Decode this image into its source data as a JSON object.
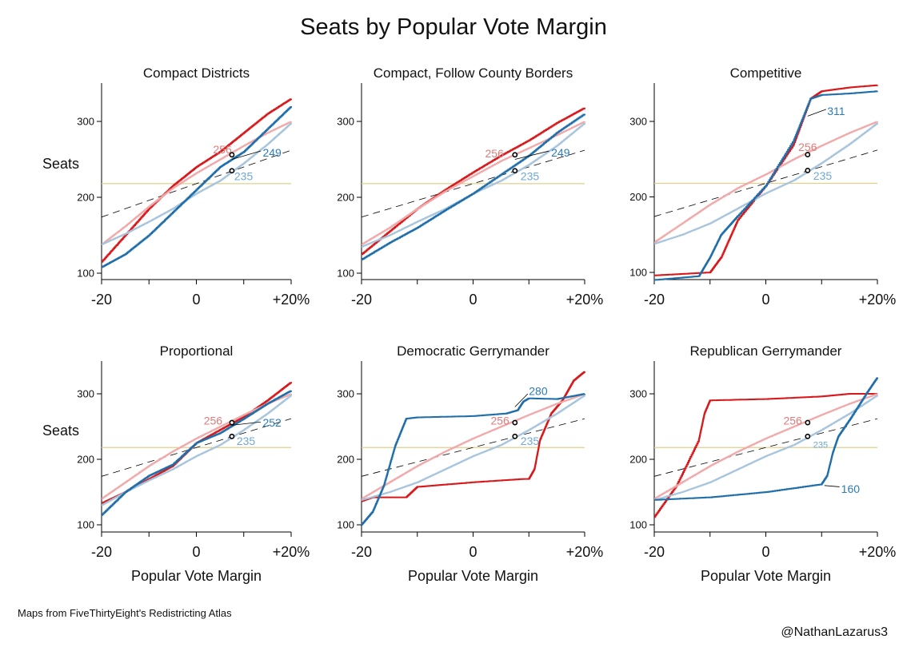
{
  "title": "Seats by Popular Vote Margin",
  "source_note": "Maps from FiveThirtyEight's Redistricting Atlas",
  "credit": "@NathanLazarus3",
  "colors": {
    "dark_red": "#d7191c",
    "light_red": "#f0a8a8",
    "dark_blue": "#1f6ea9",
    "light_blue": "#a6c4dc",
    "majority_line": "#e0cf8a",
    "reference_line": "#000000",
    "label_red": "#e07b7b",
    "label_blue_dark": "#2b7bb9",
    "label_blue_light": "#6fa8d6"
  },
  "chart_data": [
    {
      "type": "line",
      "title": "Compact Districts",
      "ylabel": "Seats",
      "xlabel": "",
      "xlim": [
        -20,
        20
      ],
      "ylim": [
        90,
        348
      ],
      "x_ticks": [
        "-20",
        "0",
        "+20%"
      ],
      "y_ticks": [
        100,
        200,
        300
      ],
      "majority_line": 218,
      "reference_line": {
        "x": [
          -20,
          20
        ],
        "y": [
          174,
          262
        ]
      },
      "series": [
        {
          "role": "dark-red",
          "x": [
            -20,
            -15,
            -10,
            -5,
            0,
            5,
            10,
            15,
            20
          ],
          "y": [
            115,
            150,
            185,
            215,
            240,
            260,
            285,
            310,
            330
          ]
        },
        {
          "role": "light-red",
          "x": [
            -20,
            -15,
            -10,
            -5,
            0,
            5,
            10,
            15,
            20
          ],
          "y": [
            138,
            162,
            188,
            212,
            232,
            250,
            268,
            285,
            300
          ]
        },
        {
          "role": "light-blue",
          "x": [
            -20,
            -15,
            -10,
            -5,
            0,
            5,
            10,
            15,
            20
          ],
          "y": [
            138,
            152,
            168,
            185,
            205,
            222,
            245,
            270,
            298
          ]
        },
        {
          "role": "dark-blue",
          "x": [
            -20,
            -15,
            -10,
            -5,
            0,
            5,
            10,
            15,
            20
          ],
          "y": [
            108,
            125,
            150,
            180,
            210,
            240,
            260,
            290,
            320
          ]
        }
      ],
      "markers": [
        {
          "x": 7.5,
          "y": 256
        },
        {
          "x": 7.5,
          "y": 235
        }
      ],
      "labels": [
        {
          "text": "256",
          "x": 5.5,
          "y": 263,
          "role": "red",
          "anchor": "middle"
        },
        {
          "text": "235",
          "x": 8,
          "y": 228,
          "role": "blue-light",
          "anchor": "start"
        },
        {
          "text": "249",
          "x": 14,
          "y": 259,
          "role": "blue-dark",
          "anchor": "start",
          "leader_from": [
            7.5,
            250
          ],
          "leader_to": [
            13.6,
            261
          ]
        }
      ]
    },
    {
      "type": "line",
      "title": "Compact, Follow County Borders",
      "ylabel": "",
      "xlabel": "",
      "xlim": [
        -20,
        20
      ],
      "ylim": [
        90,
        348
      ],
      "x_ticks": [
        "-20",
        "0",
        "+20%"
      ],
      "y_ticks": [
        100,
        200,
        300
      ],
      "majority_line": 218,
      "reference_line": {
        "x": [
          -20,
          20
        ],
        "y": [
          174,
          262
        ]
      },
      "series": [
        {
          "role": "dark-red",
          "x": [
            -20,
            -15,
            -10,
            -5,
            0,
            5,
            10,
            15,
            20
          ],
          "y": [
            125,
            155,
            185,
            210,
            233,
            255,
            275,
            298,
            318
          ]
        },
        {
          "role": "light-red",
          "x": [
            -20,
            -15,
            -10,
            -5,
            0,
            5,
            10,
            15,
            20
          ],
          "y": [
            138,
            160,
            185,
            208,
            228,
            248,
            265,
            282,
            300
          ]
        },
        {
          "role": "light-blue",
          "x": [
            -20,
            -15,
            -10,
            -5,
            0,
            5,
            10,
            15,
            20
          ],
          "y": [
            135,
            150,
            168,
            185,
            205,
            222,
            243,
            268,
            298
          ]
        },
        {
          "role": "dark-blue",
          "x": [
            -20,
            -15,
            -10,
            -5,
            0,
            5,
            10,
            15,
            20
          ],
          "y": [
            118,
            140,
            160,
            183,
            205,
            230,
            255,
            285,
            310
          ]
        }
      ],
      "markers": [
        {
          "x": 7.5,
          "y": 256
        },
        {
          "x": 7.5,
          "y": 235
        }
      ],
      "labels": [
        {
          "text": "256",
          "x": 5.5,
          "y": 258,
          "role": "red",
          "anchor": "end"
        },
        {
          "text": "235",
          "x": 8.5,
          "y": 228,
          "role": "blue-light",
          "anchor": "start"
        },
        {
          "text": "249",
          "x": 14,
          "y": 259,
          "role": "blue-dark",
          "anchor": "start",
          "leader_from": [
            7.5,
            250
          ],
          "leader_to": [
            13.6,
            261
          ]
        }
      ]
    },
    {
      "type": "line",
      "title": "Competitive",
      "ylabel": "",
      "xlabel": "",
      "xlim": [
        -20,
        20
      ],
      "ylim": [
        90,
        348
      ],
      "x_ticks": [
        "-20",
        "0",
        "+20%"
      ],
      "y_ticks": [
        100,
        200,
        300
      ],
      "majority_line": 218,
      "reference_line": {
        "x": [
          -20,
          20
        ],
        "y": [
          174,
          262
        ]
      },
      "series": [
        {
          "role": "dark-red",
          "x": [
            -20,
            -10,
            -8,
            -5,
            0,
            5,
            8,
            10,
            15,
            20
          ],
          "y": [
            96,
            100,
            120,
            170,
            215,
            270,
            330,
            340,
            345,
            348
          ]
        },
        {
          "role": "light-red",
          "x": [
            -20,
            -15,
            -10,
            -5,
            0,
            5,
            10,
            15,
            20
          ],
          "y": [
            140,
            165,
            190,
            212,
            230,
            250,
            268,
            285,
            300
          ]
        },
        {
          "role": "light-blue",
          "x": [
            -20,
            -15,
            -10,
            -5,
            0,
            5,
            10,
            15,
            20
          ],
          "y": [
            138,
            150,
            165,
            185,
            205,
            222,
            245,
            270,
            298
          ]
        },
        {
          "role": "dark-blue",
          "x": [
            -20,
            -12,
            -10,
            -8,
            -5,
            0,
            5,
            8,
            10,
            15,
            20
          ],
          "y": [
            90,
            95,
            120,
            150,
            175,
            215,
            275,
            330,
            335,
            337,
            340
          ]
        }
      ],
      "markers": [
        {
          "x": 7.5,
          "y": 256
        },
        {
          "x": 7.5,
          "y": 235
        }
      ],
      "labels": [
        {
          "text": "311",
          "x": 11,
          "y": 314,
          "role": "blue-dark",
          "anchor": "start",
          "leader_from": [
            7.5,
            307
          ],
          "leader_to": [
            10.8,
            316
          ]
        },
        {
          "text": "256",
          "x": 7.5,
          "y": 266,
          "role": "red",
          "anchor": "middle"
        },
        {
          "text": "235",
          "x": 8.5,
          "y": 228,
          "role": "blue-light",
          "anchor": "start"
        }
      ]
    },
    {
      "type": "line",
      "title": "Proportional",
      "ylabel": "Seats",
      "xlabel": "Popular Vote Margin",
      "xlim": [
        -20,
        20
      ],
      "ylim": [
        88,
        348
      ],
      "x_ticks": [
        "-20",
        "0",
        "+20%"
      ],
      "y_ticks": [
        100,
        200,
        300
      ],
      "majority_line": 218,
      "reference_line": {
        "x": [
          -20,
          20
        ],
        "y": [
          174,
          262
        ]
      },
      "series": [
        {
          "role": "dark-red",
          "x": [
            -20,
            -15,
            -10,
            -5,
            0,
            5,
            10,
            15,
            20
          ],
          "y": [
            133,
            150,
            170,
            190,
            225,
            245,
            265,
            290,
            318
          ]
        },
        {
          "role": "light-red",
          "x": [
            -20,
            -15,
            -10,
            -5,
            0,
            5,
            10,
            15,
            20
          ],
          "y": [
            140,
            165,
            190,
            212,
            232,
            250,
            268,
            285,
            300
          ]
        },
        {
          "role": "light-blue",
          "x": [
            -20,
            -15,
            -10,
            -5,
            0,
            5,
            10,
            15,
            20
          ],
          "y": [
            130,
            150,
            168,
            185,
            205,
            222,
            245,
            270,
            298
          ]
        },
        {
          "role": "dark-blue",
          "x": [
            -20,
            -15,
            -10,
            -5,
            0,
            5,
            10,
            15,
            20
          ],
          "y": [
            115,
            150,
            175,
            192,
            225,
            240,
            262,
            285,
            305
          ]
        }
      ],
      "markers": [
        {
          "x": 7.5,
          "y": 256
        },
        {
          "x": 7.5,
          "y": 235
        }
      ],
      "labels": [
        {
          "text": "256",
          "x": 5.5,
          "y": 259,
          "role": "red",
          "anchor": "end"
        },
        {
          "text": "235",
          "x": 8.5,
          "y": 228,
          "role": "blue-light",
          "anchor": "start"
        },
        {
          "text": "252",
          "x": 14,
          "y": 256,
          "role": "blue-dark",
          "anchor": "start",
          "leader_from": [
            7.5,
            252
          ],
          "leader_to": [
            13.6,
            257
          ]
        }
      ]
    },
    {
      "type": "line",
      "title": "Democratic Gerrymander",
      "ylabel": "",
      "xlabel": "Popular Vote Margin",
      "xlim": [
        -20,
        20
      ],
      "ylim": [
        88,
        348
      ],
      "x_ticks": [
        "-20",
        "0",
        "+20%"
      ],
      "y_ticks": [
        100,
        200,
        300
      ],
      "majority_line": 218,
      "reference_line": {
        "x": [
          -20,
          20
        ],
        "y": [
          174,
          262
        ]
      },
      "series": [
        {
          "role": "dark-red",
          "x": [
            -20,
            -18,
            -12,
            -10,
            0,
            9,
            10,
            11,
            12,
            14,
            16,
            18,
            20
          ],
          "y": [
            136,
            142,
            142,
            158,
            165,
            170,
            170,
            185,
            230,
            270,
            290,
            320,
            334
          ]
        },
        {
          "role": "light-red",
          "x": [
            -20,
            -15,
            -10,
            -5,
            0,
            5,
            10,
            15,
            20
          ],
          "y": [
            140,
            165,
            190,
            212,
            232,
            250,
            268,
            285,
            300
          ]
        },
        {
          "role": "light-blue",
          "x": [
            -20,
            -15,
            -10,
            -5,
            0,
            5,
            10,
            15,
            20
          ],
          "y": [
            138,
            150,
            165,
            185,
            205,
            222,
            245,
            270,
            298
          ]
        },
        {
          "role": "dark-blue",
          "x": [
            -20,
            -18,
            -16,
            -14,
            -12,
            -10,
            0,
            6,
            8,
            9,
            10,
            15,
            20
          ],
          "y": [
            100,
            120,
            160,
            220,
            262,
            264,
            266,
            270,
            275,
            288,
            293,
            292,
            300
          ]
        }
      ],
      "markers": [
        {
          "x": 7.5,
          "y": 256
        },
        {
          "x": 7.5,
          "y": 235
        }
      ],
      "labels": [
        {
          "text": "280",
          "x": 10,
          "y": 304,
          "role": "blue-dark",
          "anchor": "start",
          "leader_from": [
            7.5,
            280
          ],
          "leader_to": [
            9.8,
            300
          ]
        },
        {
          "text": "256",
          "x": 6.5,
          "y": 259,
          "role": "red",
          "anchor": "end"
        },
        {
          "text": "235",
          "x": 8.5,
          "y": 228,
          "role": "blue-light",
          "anchor": "start"
        }
      ]
    },
    {
      "type": "line",
      "title": "Republican Gerrymander",
      "ylabel": "",
      "xlabel": "Popular Vote Margin",
      "xlim": [
        -20,
        20
      ],
      "ylim": [
        88,
        348
      ],
      "x_ticks": [
        "-20",
        "0",
        "+20%"
      ],
      "y_ticks": [
        100,
        200,
        300
      ],
      "majority_line": 218,
      "reference_line": {
        "x": [
          -20,
          20
        ],
        "y": [
          174,
          262
        ]
      },
      "series": [
        {
          "role": "dark-red",
          "x": [
            -20,
            -16,
            -12,
            -11,
            -10,
            0,
            10,
            15,
            20
          ],
          "y": [
            112,
            160,
            230,
            270,
            290,
            292,
            296,
            300,
            300
          ]
        },
        {
          "role": "light-red",
          "x": [
            -20,
            -15,
            -10,
            -5,
            0,
            5,
            10,
            15,
            20
          ],
          "y": [
            140,
            165,
            190,
            212,
            232,
            250,
            268,
            285,
            300
          ]
        },
        {
          "role": "light-blue",
          "x": [
            -20,
            -15,
            -10,
            -5,
            0,
            5,
            10,
            15,
            20
          ],
          "y": [
            138,
            150,
            165,
            185,
            205,
            222,
            245,
            270,
            298
          ]
        },
        {
          "role": "dark-blue",
          "x": [
            -20,
            -10,
            0,
            10,
            11,
            12,
            13,
            15,
            18,
            20
          ],
          "y": [
            138,
            142,
            150,
            162,
            175,
            210,
            235,
            260,
            300,
            325
          ]
        }
      ],
      "markers": [
        {
          "x": 7.5,
          "y": 256
        },
        {
          "x": 7.5,
          "y": 235
        }
      ],
      "labels": [
        {
          "text": "256",
          "x": 6.5,
          "y": 259,
          "role": "red",
          "anchor": "end"
        },
        {
          "text": "235",
          "x": 8.5,
          "y": 224,
          "role": "blue-light",
          "anchor": "start",
          "size": 11
        },
        {
          "text": "160",
          "x": 13.5,
          "y": 155,
          "role": "blue-dark",
          "anchor": "start",
          "leader_from": [
            10.5,
            160
          ],
          "leader_to": [
            13.2,
            158
          ]
        }
      ]
    }
  ]
}
